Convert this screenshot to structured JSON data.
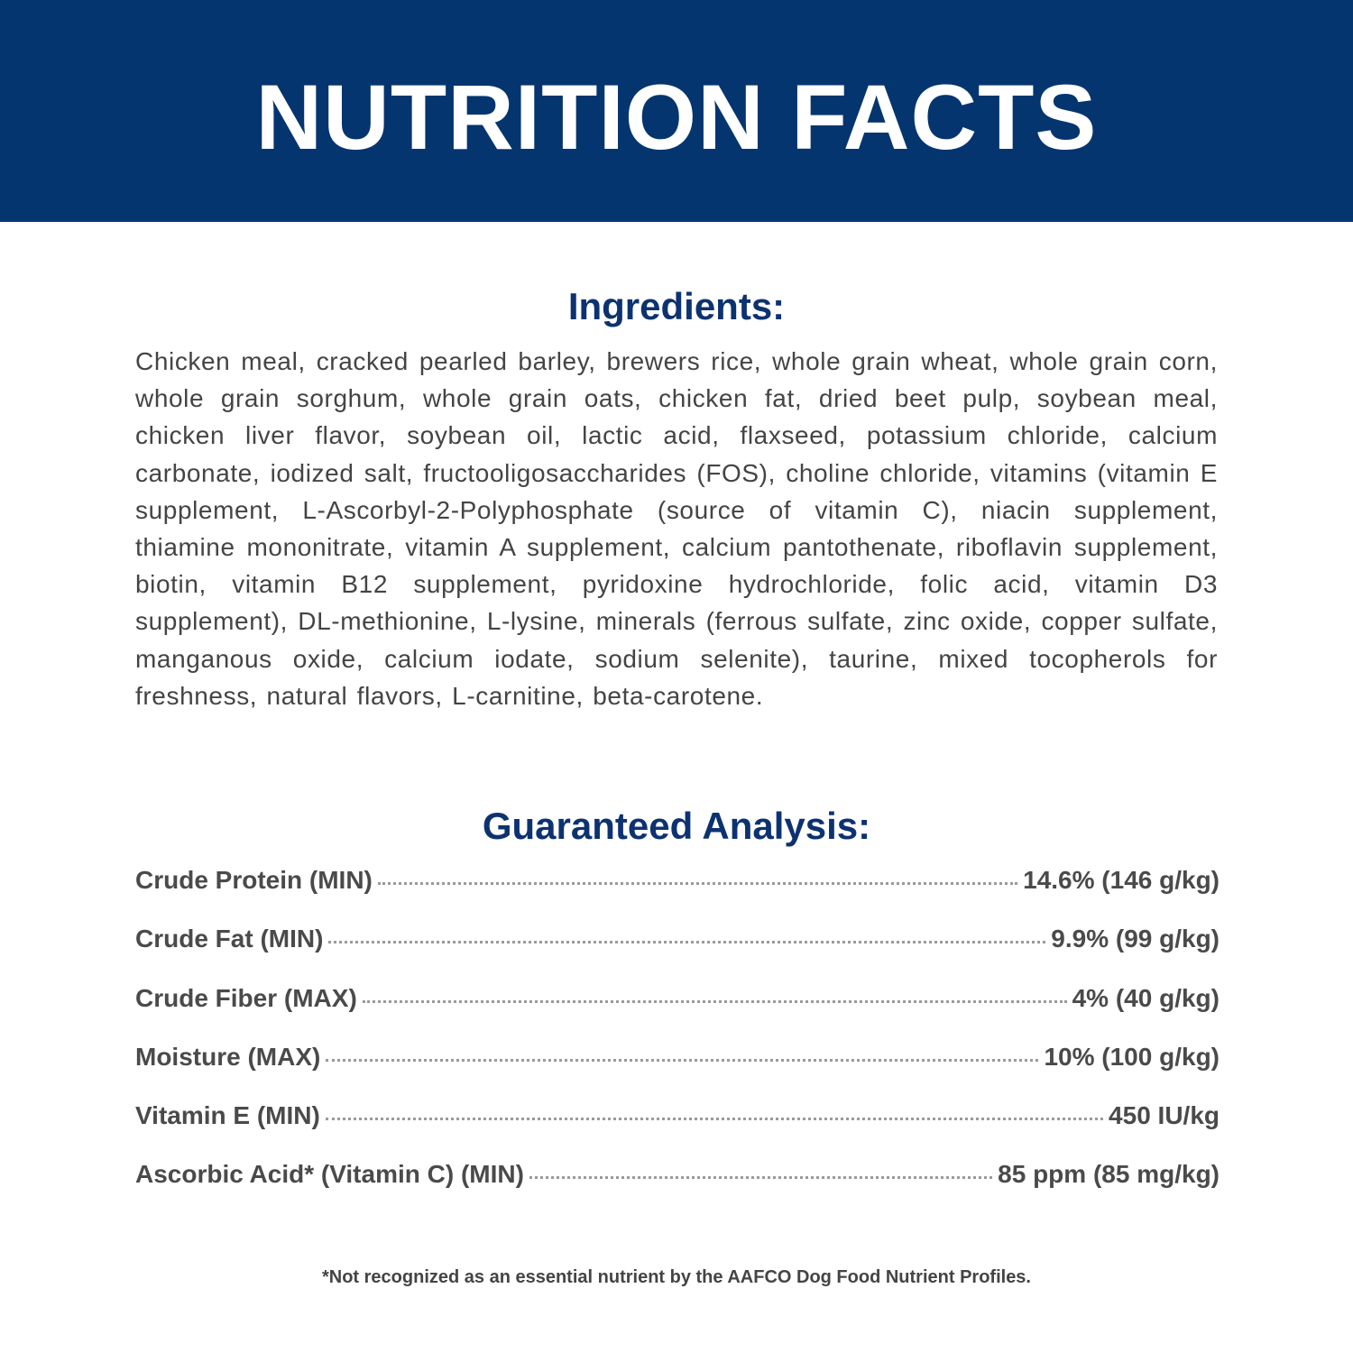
{
  "header": {
    "title": "NUTRITION FACTS",
    "color": "#05356f"
  },
  "ingredients": {
    "heading": "Ingredients:",
    "text": "Chicken meal, cracked pearled barley, brewers rice, whole grain wheat, whole grain corn, whole grain sorghum, whole grain oats, chicken fat, dried beet pulp, soybean meal, chicken liver flavor, soybean oil, lactic acid, flaxseed, potassium chloride, calcium carbonate, iodized salt, fructooligosaccharides (FOS), choline chloride, vitamins (vitamin E supplement, L-Ascorbyl-2-Polyphosphate (source of vitamin C), niacin supplement, thiamine mononitrate, vitamin A supplement, calcium pantothenate, riboflavin supplement, biotin, vitamin B12 supplement, pyridoxine hydrochloride, folic acid, vitamin D3 supplement), DL-methionine, L-lysine, minerals (ferrous sulfate, zinc oxide, copper sulfate, manganous oxide, calcium iodate, sodium selenite), taurine, mixed tocopherols for freshness, natural flavors, L-carnitine, beta-carotene."
  },
  "analysis": {
    "heading": "Guaranteed Analysis:",
    "rows": [
      {
        "label": "Crude Protein (MIN)",
        "value": "14.6% (146 g/kg)"
      },
      {
        "label": "Crude Fat (MIN)",
        "value": "9.9% (99 g/kg)"
      },
      {
        "label": "Crude Fiber (MAX)",
        "value": "4% (40 g/kg)"
      },
      {
        "label": "Moisture (MAX)",
        "value": "10% (100 g/kg)"
      },
      {
        "label": "Vitamin E (MIN)",
        "value": "450 IU/kg"
      },
      {
        "label": "Ascorbic Acid* (Vitamin C) (MIN)",
        "value": "85 ppm (85 mg/kg)"
      }
    ]
  },
  "footnote": "*Not recognized as an essential nutrient by the AAFCO Dog Food Nutrient Profiles."
}
